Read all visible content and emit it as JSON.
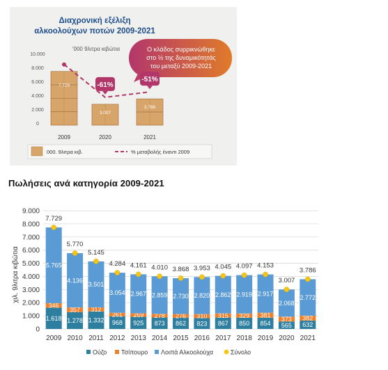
{
  "top_panel": {
    "title_line1": "Διαχρονική εξέλιξη",
    "title_line2": "αλκοολούχων ποτών 2009-2021",
    "unit_label": "'000 9λιτρα κιβώτια",
    "bubble_line1": "Ο κλάδος συρρικνώθηκε",
    "bubble_line2": "στο ½ της δυναμικότητάς",
    "bubble_line3": "του μεταξύ 2009-2021",
    "legend_box": "000. 9λιτρα κιβ.",
    "legend_line": "% μεταβολής έναντι 2009",
    "colors": {
      "title": "#1f4e8c",
      "box": "#d7a56a",
      "dash": "#b3366b",
      "bubble_left": "#b3366b",
      "bubble_right": "#e07b2a"
    }
  },
  "section_heading": "Πωλήσεις ανά κατηγορία 2009-2021",
  "chart_data": [
    {
      "type": "bar",
      "title": "Διαχρονική εξέλιξη αλκοολούχων ποτών 2009-2021",
      "ylabel": "'000 9λιτρα κιβώτια",
      "ylim": [
        0,
        10000
      ],
      "yticks": [
        "10.000",
        "8.000",
        "6.000",
        "4.000",
        "2.000",
        "0"
      ],
      "categories": [
        "2009",
        "2020",
        "2021"
      ],
      "values": [
        7729,
        3007,
        3786
      ],
      "value_labels": [
        "7.729",
        "3.007",
        "3.786"
      ],
      "pct_change": [
        null,
        -61,
        -51
      ],
      "pct_labels": [
        "-61%",
        "-51%"
      ],
      "legend": [
        "000. 9λιτρα κιβ.",
        "% μεταβολής έναντι 2009"
      ]
    },
    {
      "type": "bar",
      "stacked": true,
      "ylabel": "χιλ. 9λιτρα κιβώτια",
      "ylim": [
        0,
        9000
      ],
      "yticks": [
        "9.000",
        "8.000",
        "7.000",
        "6.000",
        "5.000",
        "4.000",
        "3.000",
        "2.000",
        "1.000",
        "0"
      ],
      "categories": [
        "2009",
        "2010",
        "2011",
        "2012",
        "2013",
        "2014",
        "2015",
        "2016",
        "2017",
        "2018",
        "2019",
        "2020",
        "2021"
      ],
      "series": [
        {
          "name": "Ούζο",
          "color": "#2e7ea0",
          "values": [
            1618,
            1278,
            1332,
            968,
            925,
            873,
            862,
            823,
            867,
            850,
            854,
            565,
            632
          ],
          "labels": [
            "1.618",
            "1.278",
            "1.332",
            "968",
            "925",
            "873",
            "862",
            "823",
            "867",
            "850",
            "854",
            "565",
            "632"
          ]
        },
        {
          "name": "Τσίπουρο",
          "color": "#f07f2a",
          "values": [
            346,
            357,
            312,
            261,
            269,
            278,
            276,
            310,
            315,
            329,
            381,
            373,
            382
          ],
          "labels": [
            "346",
            "357",
            "312",
            "261",
            "269",
            "278",
            "276",
            "310",
            "315",
            "329",
            "381",
            "373",
            "382"
          ]
        },
        {
          "name": "Λοιπά Αλκοολούχα",
          "color": "#5b9bd5",
          "values": [
            5765,
            4136,
            3501,
            3054,
            2967,
            2859,
            2730,
            2820,
            2862,
            2919,
            2917,
            2068,
            2772
          ],
          "labels": [
            "5.765",
            "4.136",
            "3.501",
            "3.054",
            "2.967",
            "2.859",
            "2.730",
            "2.820",
            "2.862",
            "2.919",
            "2.917",
            "2.068",
            "2.772"
          ]
        }
      ],
      "totals": {
        "name": "Σύνολο",
        "color": "#f5c518",
        "values": [
          7729,
          5770,
          5145,
          4284,
          4161,
          4010,
          3868,
          3953,
          4045,
          4097,
          4153,
          3007,
          3786
        ],
        "labels": [
          "7.729",
          "5.770",
          "5.145",
          "4.284",
          "4.161",
          "4.010",
          "3.868",
          "3.953",
          "4.045",
          "4.097",
          "4.153",
          "3.007",
          "3.786"
        ]
      },
      "legend_position": "bottom"
    }
  ]
}
